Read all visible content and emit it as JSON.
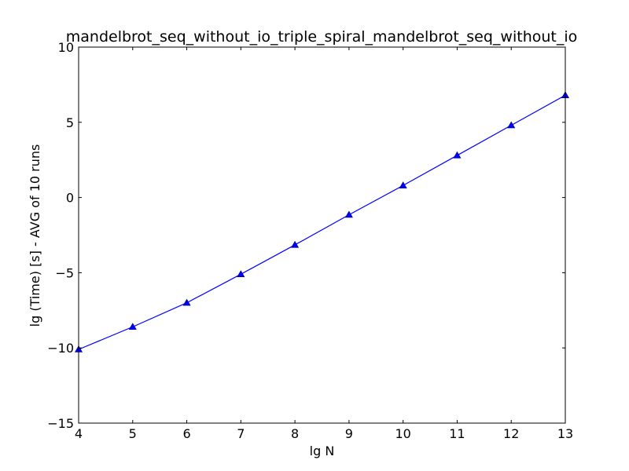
{
  "chart_data": {
    "type": "line",
    "title": "mandelbrot_seq_without_io_triple_spiral_mandelbrot_seq_without_io",
    "xlabel": "lg N",
    "ylabel": "lg (Time) [s] - AVG of 10 runs",
    "xlim": [
      4,
      13
    ],
    "ylim": [
      -15,
      10
    ],
    "xticks": [
      4,
      5,
      6,
      7,
      8,
      9,
      10,
      11,
      12,
      13
    ],
    "yticks": [
      -15,
      -10,
      -5,
      0,
      5,
      10
    ],
    "grid": false,
    "series": [
      {
        "color": "#0000ff",
        "marker": "triangle-up",
        "x": [
          4,
          5,
          6,
          7,
          8,
          9,
          10,
          11,
          12,
          13
        ],
        "y": [
          -10.1,
          -8.6,
          -7.0,
          -5.1,
          -3.15,
          -1.15,
          0.8,
          2.8,
          4.8,
          6.8
        ]
      }
    ]
  }
}
